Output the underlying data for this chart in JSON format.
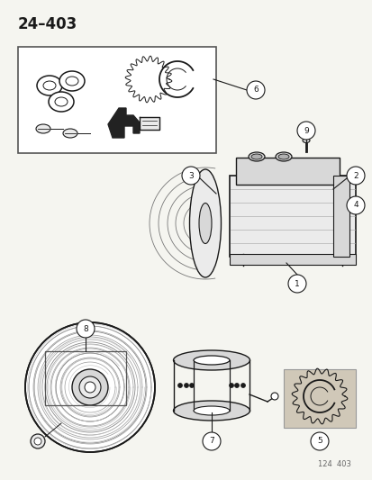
{
  "title_top_left": "24–403",
  "footer_text": "124  403",
  "bg_color": "#f5f5f0",
  "fig_width": 4.14,
  "fig_height": 5.33,
  "dpi": 100,
  "line_color": "#1a1a1a",
  "gray_fill": "#d8d8d8",
  "light_gray": "#ebebeb",
  "mid_gray": "#b0b0b0"
}
